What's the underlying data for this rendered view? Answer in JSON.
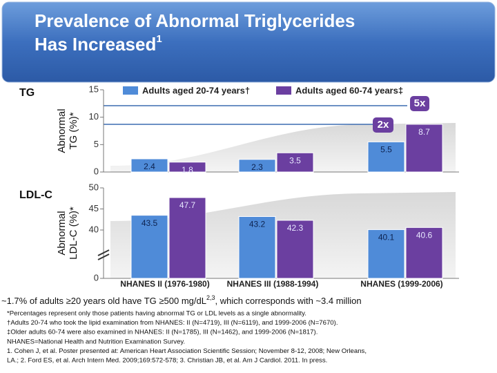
{
  "header": {
    "title": [
      "Prevalence of Abnormal Triglycerides",
      "Has Increased"
    ],
    "title_sup": "1"
  },
  "chart_data": [
    {
      "type": "bar",
      "label": "TG",
      "ylabel": [
        "Abnormal",
        "TG (%)*"
      ],
      "categories": [
        null,
        null,
        null
      ],
      "series": [
        {
          "name": "Adults aged 20-74 years†",
          "color": "#4f8bd8",
          "values": [
            2.4,
            2.3,
            5.5
          ]
        },
        {
          "name": "Adults aged 60-74 years‡",
          "color": "#6b3fa0",
          "values": [
            1.8,
            3.5,
            8.7
          ]
        }
      ],
      "ylim": [
        0,
        15
      ],
      "yticks": [
        0,
        5,
        10,
        15
      ],
      "annotations": [
        "2x",
        "5x"
      ]
    },
    {
      "type": "bar",
      "label": "LDL-C",
      "ylabel": [
        "Abnormal",
        "LDL-C (%)*"
      ],
      "categories": [
        "NHANES II (1976-1980)",
        "NHANES III (1988-1994)",
        "NHANES (1999-2006)"
      ],
      "series": [
        {
          "color": "#4f8bd8",
          "values": [
            43.5,
            43.2,
            40.1
          ]
        },
        {
          "color": "#6b3fa0",
          "values": [
            47.7,
            42.3,
            40.6
          ]
        }
      ],
      "ylim": [
        0,
        50
      ],
      "yticks": [
        0,
        40,
        45,
        50
      ],
      "axis_break": true
    }
  ],
  "footer": {
    "headline": "~1.7% of adults ≥20 years old have TG ≥500 mg/dL",
    "headline_sup": "2,3",
    "headline_end": ", which corresponds with ~3.4 million",
    "notes": [
      "*Percentages represent only those patients having abnormal TG or LDL levels as a single abnormality.",
      "†Adults 20-74 who took the lipid examination from NHANES: II (N=4719), III (N=6119), and 1999-2006 (N=7670).",
      "‡Older adults 60-74 were also examined in NHANES: II (N=1785), III (N=1462), and 1999-2006 (N=1817).",
      "NHANES=National Health and Nutrition Examination Survey.",
      "1. Cohen J, et al. Poster presented at: American Heart Association Scientific Session; November 8-12, 2008; New Orleans,",
      "LA.; 2. Ford ES, et al. Arch Intern Med. 2009;169:572-578; 3. Christian JB, et al. Am J Cardiol. 2011. In press."
    ]
  }
}
